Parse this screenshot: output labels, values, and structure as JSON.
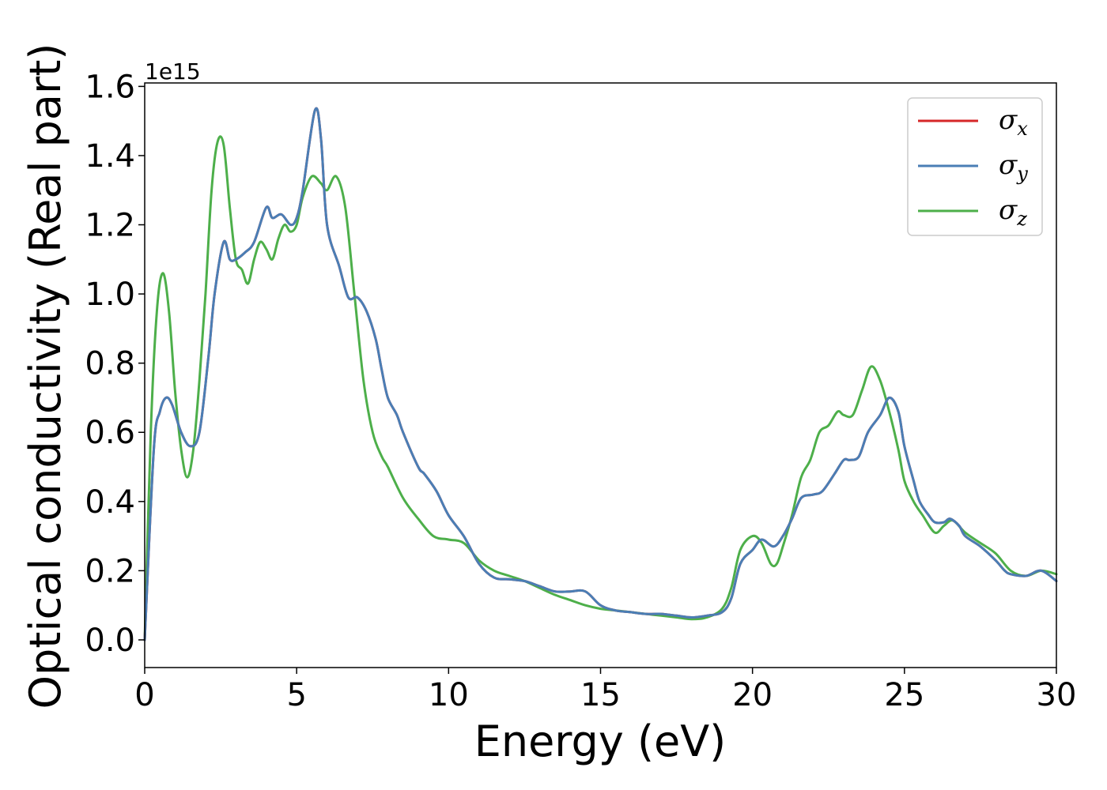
{
  "chart_data": {
    "type": "line",
    "title": "",
    "xlabel": "Energy (eV)",
    "ylabel": "Optical conductivity (Real part)",
    "y_offset_label": "1e15",
    "xlim": [
      0,
      30
    ],
    "ylim": [
      -0.08,
      1.61
    ],
    "x_ticks": [
      0,
      5,
      10,
      15,
      20,
      25,
      30
    ],
    "x_tick_labels": [
      "0",
      "5",
      "10",
      "15",
      "20",
      "25",
      "30"
    ],
    "y_ticks": [
      0.0,
      0.2,
      0.4,
      0.6,
      0.8,
      1.0,
      1.2,
      1.4,
      1.6
    ],
    "y_tick_labels": [
      "0.0",
      "0.2",
      "0.4",
      "0.6",
      "0.8",
      "1.0",
      "1.2",
      "1.4",
      "1.6"
    ],
    "grid": false,
    "legend_position": "top-right",
    "series": [
      {
        "name": "σx",
        "symbol": "σ",
        "subscript": "x",
        "color": "#d62728",
        "x": [
          0,
          0.3,
          0.5,
          0.7,
          0.9,
          1.2,
          1.5,
          1.8,
          2.1,
          2.3,
          2.6,
          2.8,
          3.0,
          3.3,
          3.6,
          4.0,
          4.2,
          4.5,
          4.8,
          5.0,
          5.2,
          5.6,
          5.8,
          6.0,
          6.4,
          6.7,
          7.0,
          7.3,
          7.6,
          7.8,
          8.0,
          8.3,
          8.5,
          9.0,
          9.2,
          9.6,
          10.0,
          10.5,
          11.0,
          11.5,
          12.0,
          12.5,
          13.0,
          13.5,
          14.0,
          14.5,
          15.0,
          15.5,
          16.0,
          16.5,
          17.0,
          17.5,
          18.0,
          18.5,
          19.0,
          19.3,
          19.6,
          20.0,
          20.3,
          20.7,
          21.0,
          21.3,
          21.6,
          22.0,
          22.3,
          22.7,
          23.0,
          23.2,
          23.5,
          23.8,
          24.2,
          24.5,
          24.8,
          25.0,
          25.3,
          25.5,
          25.8,
          26.0,
          26.3,
          26.5,
          26.8,
          27.0,
          27.5,
          28.0,
          28.3,
          28.5,
          29.0,
          29.5,
          30.0
        ],
        "y": [
          0.0,
          0.55,
          0.66,
          0.7,
          0.68,
          0.6,
          0.56,
          0.6,
          0.82,
          1.0,
          1.15,
          1.1,
          1.1,
          1.12,
          1.15,
          1.25,
          1.22,
          1.23,
          1.2,
          1.22,
          1.3,
          1.53,
          1.45,
          1.2,
          1.08,
          0.99,
          0.99,
          0.95,
          0.87,
          0.78,
          0.7,
          0.65,
          0.6,
          0.5,
          0.48,
          0.43,
          0.36,
          0.3,
          0.22,
          0.18,
          0.175,
          0.17,
          0.155,
          0.14,
          0.14,
          0.14,
          0.1,
          0.085,
          0.08,
          0.075,
          0.075,
          0.07,
          0.065,
          0.07,
          0.08,
          0.12,
          0.22,
          0.26,
          0.29,
          0.27,
          0.3,
          0.35,
          0.41,
          0.42,
          0.43,
          0.48,
          0.52,
          0.52,
          0.53,
          0.6,
          0.65,
          0.7,
          0.66,
          0.56,
          0.46,
          0.4,
          0.36,
          0.34,
          0.34,
          0.35,
          0.33,
          0.3,
          0.27,
          0.23,
          0.2,
          0.19,
          0.185,
          0.2,
          0.17
        ]
      },
      {
        "name": "σy",
        "symbol": "σ",
        "subscript": "y",
        "color": "#4a7eb5",
        "x": [
          0,
          0.3,
          0.5,
          0.7,
          0.9,
          1.2,
          1.5,
          1.8,
          2.1,
          2.3,
          2.6,
          2.8,
          3.0,
          3.3,
          3.6,
          4.0,
          4.2,
          4.5,
          4.8,
          5.0,
          5.2,
          5.6,
          5.8,
          6.0,
          6.4,
          6.7,
          7.0,
          7.3,
          7.6,
          7.8,
          8.0,
          8.3,
          8.5,
          9.0,
          9.2,
          9.6,
          10.0,
          10.5,
          11.0,
          11.5,
          12.0,
          12.5,
          13.0,
          13.5,
          14.0,
          14.5,
          15.0,
          15.5,
          16.0,
          16.5,
          17.0,
          17.5,
          18.0,
          18.5,
          19.0,
          19.3,
          19.6,
          20.0,
          20.3,
          20.7,
          21.0,
          21.3,
          21.6,
          22.0,
          22.3,
          22.7,
          23.0,
          23.2,
          23.5,
          23.8,
          24.2,
          24.5,
          24.8,
          25.0,
          25.3,
          25.5,
          25.8,
          26.0,
          26.3,
          26.5,
          26.8,
          27.0,
          27.5,
          28.0,
          28.3,
          28.5,
          29.0,
          29.5,
          30.0
        ],
        "y": [
          0.0,
          0.55,
          0.66,
          0.7,
          0.68,
          0.6,
          0.56,
          0.6,
          0.82,
          1.0,
          1.15,
          1.1,
          1.1,
          1.12,
          1.15,
          1.25,
          1.22,
          1.23,
          1.2,
          1.22,
          1.3,
          1.53,
          1.45,
          1.2,
          1.08,
          0.99,
          0.99,
          0.95,
          0.87,
          0.78,
          0.7,
          0.65,
          0.6,
          0.5,
          0.48,
          0.43,
          0.36,
          0.3,
          0.22,
          0.18,
          0.175,
          0.17,
          0.155,
          0.14,
          0.14,
          0.14,
          0.1,
          0.085,
          0.08,
          0.075,
          0.075,
          0.07,
          0.065,
          0.07,
          0.08,
          0.12,
          0.22,
          0.26,
          0.29,
          0.27,
          0.3,
          0.35,
          0.41,
          0.42,
          0.43,
          0.48,
          0.52,
          0.52,
          0.53,
          0.6,
          0.65,
          0.7,
          0.66,
          0.56,
          0.46,
          0.4,
          0.36,
          0.34,
          0.34,
          0.35,
          0.33,
          0.3,
          0.27,
          0.23,
          0.2,
          0.19,
          0.185,
          0.2,
          0.17
        ]
      },
      {
        "name": "σz",
        "symbol": "σ",
        "subscript": "z",
        "color": "#4daf4a",
        "x": [
          0,
          0.2,
          0.4,
          0.6,
          0.8,
          1.0,
          1.2,
          1.4,
          1.6,
          1.8,
          2.0,
          2.2,
          2.4,
          2.6,
          2.8,
          3.0,
          3.2,
          3.4,
          3.6,
          3.8,
          4.0,
          4.2,
          4.4,
          4.6,
          4.8,
          5.0,
          5.2,
          5.5,
          5.8,
          6.0,
          6.3,
          6.6,
          6.9,
          7.2,
          7.5,
          7.8,
          8.0,
          8.5,
          9.0,
          9.5,
          10.0,
          10.5,
          11.0,
          11.5,
          12.0,
          12.5,
          13.0,
          13.5,
          14.0,
          14.5,
          15.0,
          15.5,
          16.0,
          16.5,
          17.0,
          17.5,
          18.0,
          18.5,
          19.0,
          19.3,
          19.6,
          20.0,
          20.3,
          20.6,
          20.8,
          21.0,
          21.3,
          21.6,
          21.9,
          22.2,
          22.5,
          22.8,
          23.0,
          23.3,
          23.6,
          23.9,
          24.2,
          24.5,
          24.8,
          25.0,
          25.3,
          25.6,
          26.0,
          26.3,
          26.6,
          27.0,
          27.5,
          28.0,
          28.5,
          29.0,
          29.5,
          30.0
        ],
        "y": [
          0.0,
          0.6,
          0.95,
          1.06,
          0.95,
          0.72,
          0.55,
          0.47,
          0.55,
          0.75,
          1.0,
          1.3,
          1.44,
          1.43,
          1.25,
          1.1,
          1.07,
          1.03,
          1.1,
          1.15,
          1.13,
          1.1,
          1.16,
          1.2,
          1.18,
          1.2,
          1.28,
          1.34,
          1.32,
          1.3,
          1.34,
          1.25,
          1.0,
          0.75,
          0.6,
          0.53,
          0.5,
          0.41,
          0.35,
          0.3,
          0.29,
          0.28,
          0.23,
          0.2,
          0.185,
          0.17,
          0.15,
          0.13,
          0.115,
          0.1,
          0.09,
          0.085,
          0.08,
          0.075,
          0.07,
          0.065,
          0.06,
          0.065,
          0.09,
          0.15,
          0.26,
          0.3,
          0.28,
          0.22,
          0.22,
          0.27,
          0.36,
          0.47,
          0.52,
          0.6,
          0.62,
          0.66,
          0.65,
          0.65,
          0.72,
          0.79,
          0.75,
          0.66,
          0.55,
          0.46,
          0.4,
          0.36,
          0.31,
          0.33,
          0.345,
          0.31,
          0.28,
          0.25,
          0.2,
          0.185,
          0.2,
          0.19
        ]
      }
    ]
  }
}
